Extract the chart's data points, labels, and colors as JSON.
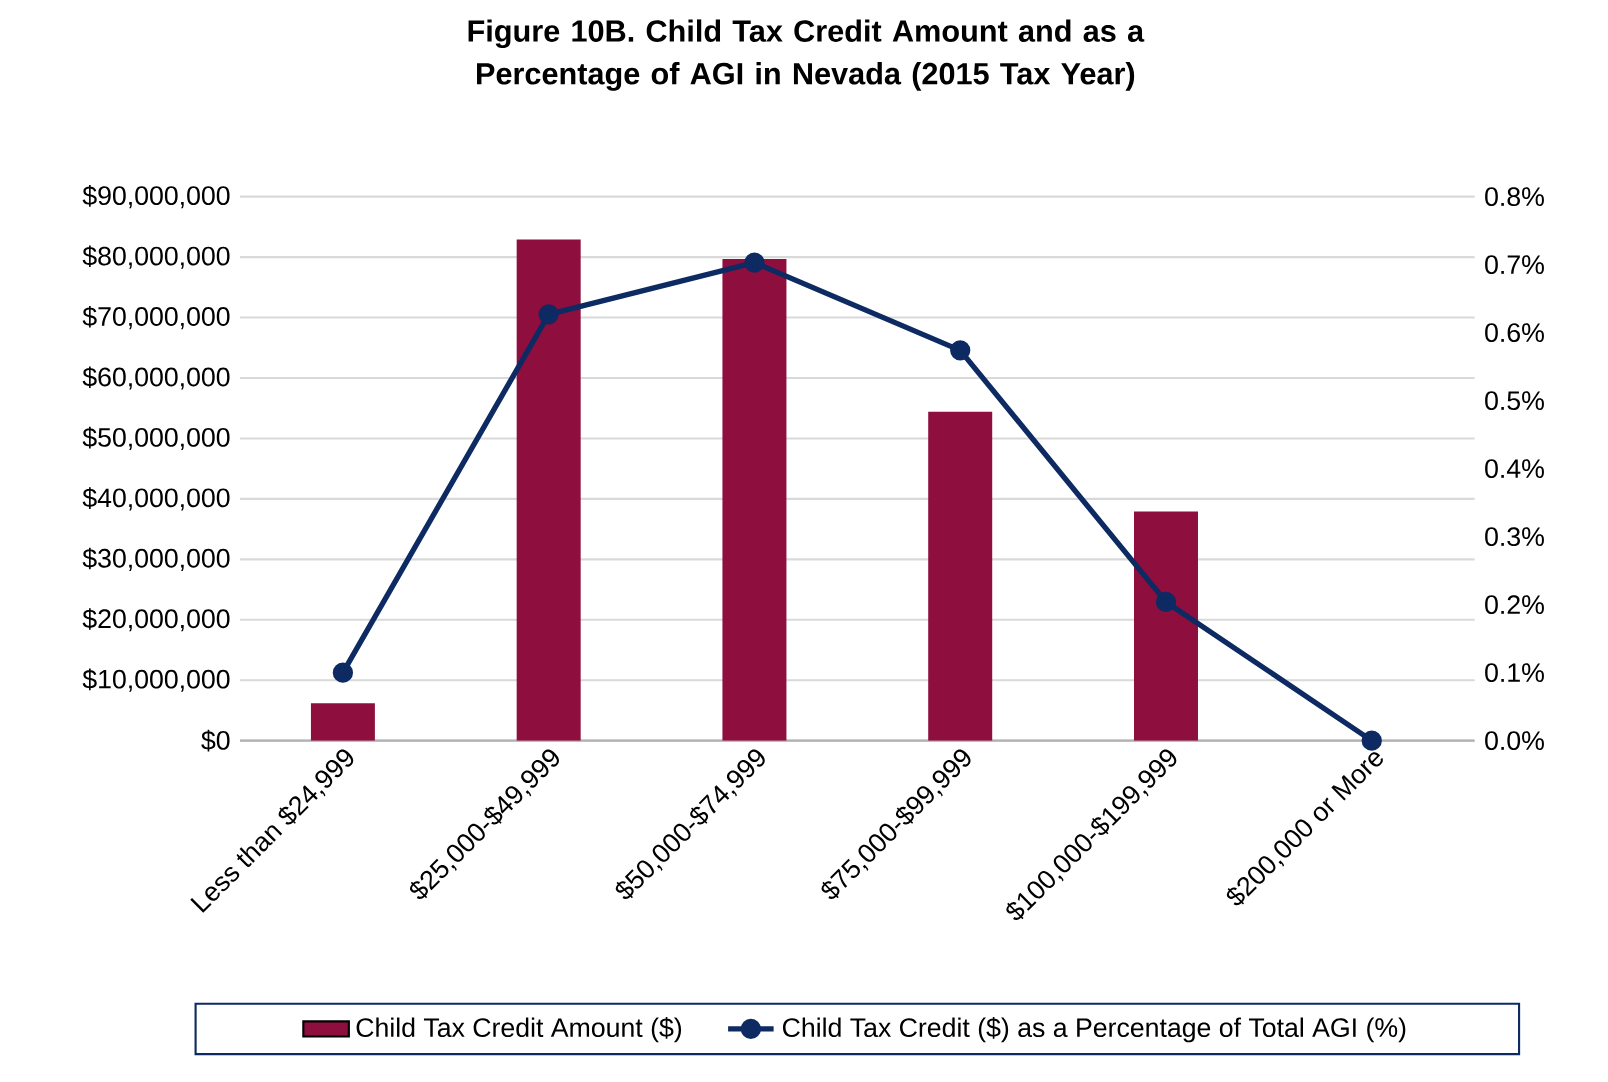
{
  "chart_data": {
    "type": "bar",
    "title": "Figure 10B.     Child Tax Credit Amount and as a Percentage of AGI in Nevada  (2015 Tax Year)",
    "categories": [
      "Less than $24,999",
      "$25,000-$49,999",
      "$50,000-$74,999",
      "$75,000-$99,999",
      "$100,000-$199,999",
      "$200,000 or More"
    ],
    "series": [
      {
        "name": "Child Tax Credit Amount ($)",
        "color": "#8e0e3e",
        "values": [
          6200000,
          82900000,
          79700000,
          54400000,
          37900000,
          0
        ]
      },
      {
        "name": "Child Tax Credit ($) as a Percentage of Total AGI (%)",
        "type": "line",
        "axis": "y2",
        "color": "#0d2a63",
        "marker": "circle",
        "values": [
          0.1,
          0.627,
          0.703,
          0.574,
          0.204,
          0
        ]
      }
    ],
    "ylim": [
      0,
      90000000
    ],
    "yticks": [
      {
        "value": 0,
        "label": "$0"
      },
      {
        "value": 10000000,
        "label": "$10,000,000"
      },
      {
        "value": 20000000,
        "label": "$20,000,000"
      },
      {
        "value": 30000000,
        "label": "$30,000,000"
      },
      {
        "value": 40000000,
        "label": "$40,000,000"
      },
      {
        "value": 50000000,
        "label": "$50,000,000"
      },
      {
        "value": 60000000,
        "label": "$60,000,000"
      },
      {
        "value": 70000000,
        "label": "$70,000,000"
      },
      {
        "value": 80000000,
        "label": "$80,000,000"
      },
      {
        "value": 90000000,
        "label": "$90,000,000"
      }
    ],
    "y2lim": [
      0,
      0.8
    ],
    "y2ticks": [
      {
        "value": 0,
        "label": "0.0%"
      },
      {
        "value": 0.1,
        "label": "0.1%"
      },
      {
        "value": 0.2,
        "label": "0.2%"
      },
      {
        "value": 0.3,
        "label": "0.3%"
      },
      {
        "value": 0.4,
        "label": "0.4%"
      },
      {
        "value": 0.5,
        "label": "0.5%"
      },
      {
        "value": 0.6,
        "label": "0.6%"
      },
      {
        "value": 0.7,
        "label": "0.7%"
      },
      {
        "value": 0.8,
        "label": "0.8%"
      }
    ],
    "grid": "y",
    "legend": "bottom"
  }
}
